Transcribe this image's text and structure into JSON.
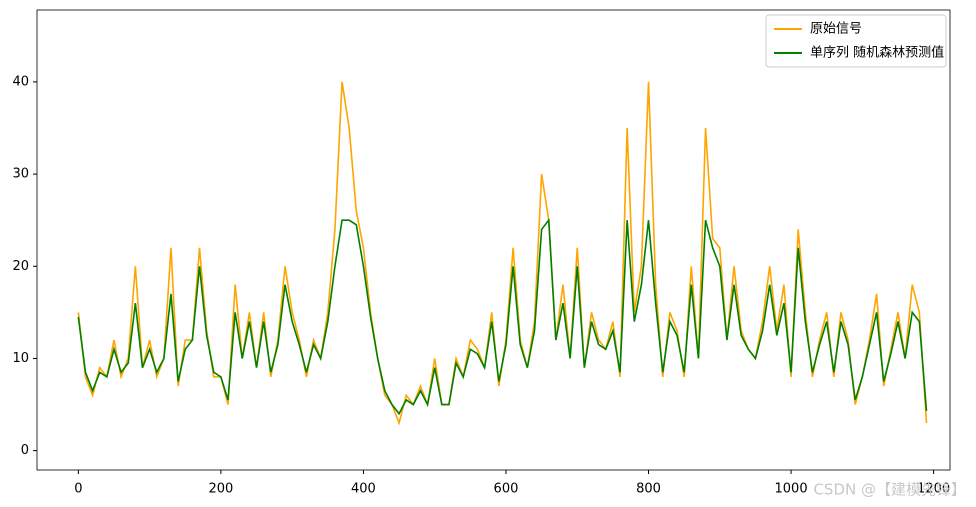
{
  "chart_data": {
    "type": "line",
    "x": [
      0,
      10,
      20,
      30,
      40,
      50,
      60,
      70,
      80,
      90,
      100,
      110,
      120,
      130,
      140,
      150,
      160,
      170,
      180,
      190,
      200,
      210,
      220,
      230,
      240,
      250,
      260,
      270,
      280,
      290,
      300,
      310,
      320,
      330,
      340,
      350,
      360,
      370,
      380,
      390,
      400,
      410,
      420,
      430,
      440,
      450,
      460,
      470,
      480,
      490,
      500,
      510,
      520,
      530,
      540,
      550,
      560,
      570,
      580,
      590,
      600,
      610,
      620,
      630,
      640,
      650,
      660,
      670,
      680,
      690,
      700,
      710,
      720,
      730,
      740,
      750,
      760,
      770,
      780,
      790,
      800,
      810,
      820,
      830,
      840,
      850,
      860,
      870,
      880,
      890,
      900,
      910,
      920,
      930,
      940,
      950,
      960,
      970,
      980,
      990,
      1000,
      1010,
      1020,
      1030,
      1040,
      1050,
      1060,
      1070,
      1080,
      1090,
      1100,
      1110,
      1120,
      1130,
      1140,
      1150,
      1160,
      1170,
      1180,
      1190
    ],
    "series": [
      {
        "name": "原始信号",
        "color": "#ffa500",
        "values": [
          15,
          8,
          6,
          9,
          8,
          12,
          8,
          10,
          20,
          9,
          12,
          8,
          10,
          22,
          7,
          12,
          12,
          22,
          13,
          8,
          8,
          5,
          18,
          10,
          15,
          9,
          15,
          8,
          12,
          20,
          15,
          12,
          8,
          12,
          10,
          15,
          24,
          40,
          35,
          26,
          22,
          15,
          10,
          6,
          5,
          3,
          6,
          5,
          7,
          5,
          10,
          5,
          5,
          10,
          8,
          12,
          11,
          9,
          15,
          7,
          12,
          22,
          12,
          9,
          14,
          30,
          25,
          12,
          18,
          10,
          22,
          9,
          15,
          12,
          11,
          14,
          8,
          35,
          15,
          20,
          40,
          18,
          8,
          15,
          13,
          8,
          20,
          10,
          35,
          23,
          22,
          12,
          20,
          13,
          11,
          10,
          14,
          20,
          13,
          18,
          8,
          24,
          15,
          8,
          12,
          15,
          8,
          15,
          12,
          5,
          8,
          12,
          17,
          7,
          11,
          15,
          10,
          18,
          15,
          3
        ]
      },
      {
        "name": "单序列 随机森林预测值",
        "color": "#008000",
        "values": [
          14.5,
          8.5,
          6.5,
          8.5,
          8,
          11,
          8.5,
          9.5,
          16,
          9,
          11,
          8.5,
          10,
          17,
          7.5,
          11,
          12,
          20,
          12.5,
          8.5,
          8,
          5.5,
          15,
          10,
          14,
          9,
          14,
          8.5,
          11.5,
          18,
          14,
          11.5,
          8.5,
          11.5,
          10,
          14,
          20,
          25,
          25,
          24.5,
          20,
          14.5,
          10,
          6.5,
          5,
          4,
          5.5,
          5,
          6.5,
          5,
          9,
          5,
          5,
          9.5,
          8,
          11,
          10.5,
          9,
          14,
          7.5,
          11.5,
          20,
          11.5,
          9,
          13,
          24,
          25,
          12,
          16,
          10,
          20,
          9,
          14,
          11.5,
          11,
          13,
          8.5,
          25,
          14,
          18,
          25,
          16,
          8.5,
          14,
          12.5,
          8.5,
          18,
          10,
          25,
          22,
          20,
          12,
          18,
          12.5,
          11,
          10,
          13,
          18,
          12.5,
          16,
          8.5,
          22,
          14,
          8.5,
          11.5,
          14,
          8.5,
          14,
          11.5,
          5.5,
          8,
          11.5,
          15,
          7.5,
          10.5,
          14,
          10,
          15,
          14,
          4.3
        ]
      }
    ],
    "xlim": [
      -58,
      1223
    ],
    "ylim": [
      -2.1,
      47.8
    ],
    "xticks": [
      0,
      200,
      400,
      600,
      800,
      1000,
      1200
    ],
    "yticks": [
      0,
      10,
      20,
      30,
      40
    ],
    "legend": "upper right",
    "watermark": "CSDN @【建模先锋】"
  }
}
